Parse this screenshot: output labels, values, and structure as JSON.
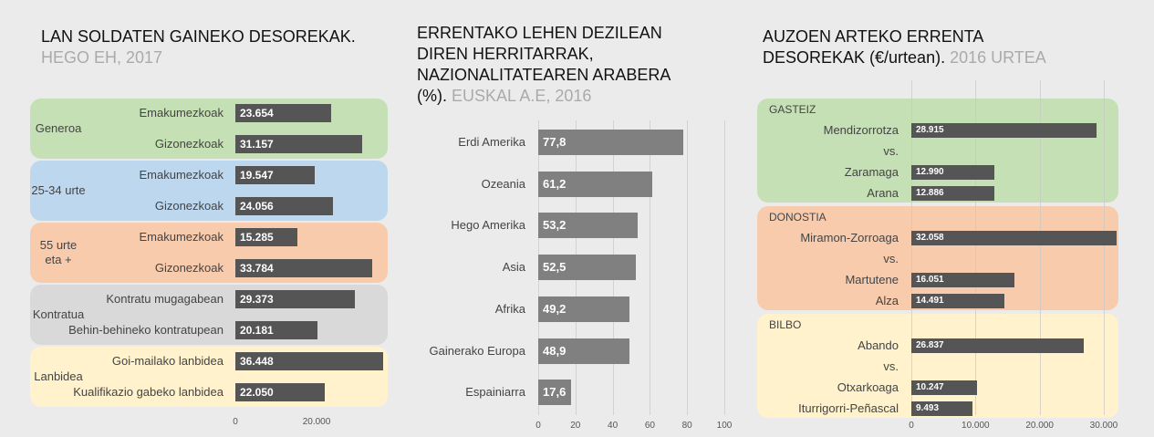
{
  "chart_data": [
    {
      "type": "bar",
      "orientation": "horizontal",
      "title": "LAN SOLDATEN GAINEKO DESOREKAK.",
      "subtitle": "HEGO EH, 2017",
      "bar_color": "#555555",
      "groups": [
        {
          "name": "Generoa",
          "color": "#c5e0b4",
          "categories": [
            "Emakumezkoak",
            "Gizonezkoak"
          ],
          "values": [
            23654,
            31157
          ],
          "value_labels": [
            "23.654",
            "31.157"
          ]
        },
        {
          "name": "25-34 urte",
          "color": "#bdd7ee",
          "categories": [
            "Emakumezkoak",
            "Gizonezkoak"
          ],
          "values": [
            19547,
            24056
          ],
          "value_labels": [
            "19.547",
            "24.056"
          ]
        },
        {
          "name": "55 urte eta +",
          "color": "#f8cbad",
          "categories": [
            "Emakumezkoak",
            "Gizonezkoak"
          ],
          "values": [
            15285,
            33784
          ],
          "value_labels": [
            "15.285",
            "33.784"
          ]
        },
        {
          "name": "Kontratua",
          "color": "#d9d9d9",
          "categories": [
            "Kontratu mugagabean",
            "Behin-behineko kontratupean"
          ],
          "values": [
            29373,
            20181
          ],
          "value_labels": [
            "29.373",
            "20.181"
          ]
        },
        {
          "name": "Lanbidea",
          "color": "#fff2cc",
          "categories": [
            "Goi-mailako lanbidea",
            "Kualifikazio gabeko lanbidea"
          ],
          "values": [
            36448,
            22050
          ],
          "value_labels": [
            "36.448",
            "22.050"
          ]
        }
      ],
      "xlim": [
        0,
        40000
      ],
      "xticks": [
        0,
        {
          "value": 20000,
          "label": "20.000"
        }
      ],
      "grid": false
    },
    {
      "type": "bar",
      "orientation": "horizontal",
      "title": "ERRENTAKO LEHEN DEZILEAN DIREN HERRITARRAK, NAZIONALITATEAREN ARABERA (%).",
      "subtitle": "EUSKAL A.E, 2016",
      "bar_color": "#808080",
      "groups": [
        {
          "name": null,
          "color": null,
          "categories": [
            "Erdi Amerika",
            "Ozeania",
            "Hego Amerika",
            "Asia",
            "Afrika",
            "Gainerako Europa",
            "Espainiarra"
          ],
          "values": [
            77.8,
            61.2,
            53.2,
            52.5,
            49.2,
            48.9,
            17.6
          ],
          "value_labels": [
            "77,8",
            "61,2",
            "53,2",
            "52,5",
            "49,2",
            "48,9",
            "17,6"
          ]
        }
      ],
      "xlim": [
        0,
        100
      ],
      "xticks": [
        0,
        20,
        40,
        60,
        80,
        100
      ],
      "grid": true
    },
    {
      "type": "bar",
      "orientation": "horizontal",
      "title": "AUZOEN ARTEKO ERRENTA DESOREKAK (€/urtean).",
      "subtitle": "2016 URTEA",
      "bar_color": "#555555",
      "groups": [
        {
          "name": "GASTEIZ",
          "color": "#c5e0b4",
          "categories": [
            "Mendizorrotza",
            "vs.",
            "Zaramaga",
            "Arana"
          ],
          "values": [
            28915,
            null,
            12990,
            12886
          ],
          "value_labels": [
            "28.915",
            null,
            "12.990",
            "12.886"
          ]
        },
        {
          "name": "DONOSTIA",
          "color": "#f8cbad",
          "categories": [
            "Miramon-Zorroaga",
            "vs.",
            "Martutene",
            "Alza"
          ],
          "values": [
            32058,
            null,
            16051,
            14491
          ],
          "value_labels": [
            "32.058",
            null,
            "16.051",
            "14.491"
          ]
        },
        {
          "name": "BILBO",
          "color": "#fff2cc",
          "categories": [
            "Abando",
            "vs.",
            "Otxarkoaga",
            "Iturrigorri-Peñascal"
          ],
          "values": [
            26837,
            null,
            10247,
            9493
          ],
          "value_labels": [
            "26.837",
            null,
            "10.247",
            "9.493"
          ]
        }
      ],
      "xlim": [
        0,
        32000
      ],
      "xticks": [
        0,
        {
          "value": 10000,
          "label": "10.000"
        },
        {
          "value": 20000,
          "label": "20.000"
        },
        {
          "value": 30000,
          "label": "30.000"
        }
      ],
      "grid": true
    }
  ]
}
